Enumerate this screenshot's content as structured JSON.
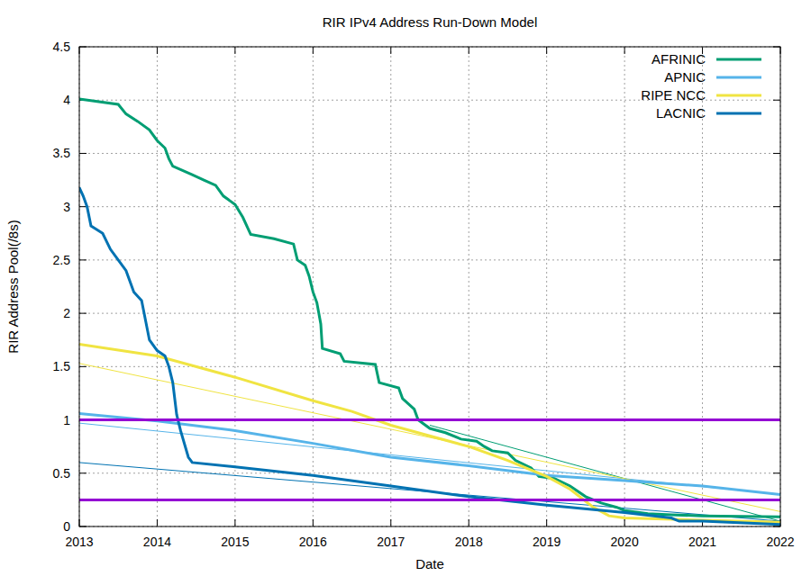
{
  "chart_data": {
    "type": "line",
    "title": "RIR IPv4 Address Run-Down Model",
    "x_label": "Date",
    "y_label": "RIR Address Pool(/8s)",
    "xlim": [
      2013,
      2022
    ],
    "xticks": [
      2013,
      2014,
      2015,
      2016,
      2017,
      2018,
      2019,
      2020,
      2021,
      2022
    ],
    "ylim": [
      0,
      4.5
    ],
    "yticks": [
      0,
      0.5,
      1,
      1.5,
      2,
      2.5,
      3,
      3.5,
      4,
      4.5
    ],
    "grid": true,
    "legend": "top-right",
    "reference_lines": [
      {
        "value": 1,
        "color": "#9400d3"
      },
      {
        "value": 0.25,
        "color": "#9400d3"
      }
    ],
    "series": [
      {
        "name": "AFRINIC",
        "color": "#009e73",
        "line_style": "solid",
        "x": [
          2013.0,
          2013.5,
          2013.6,
          2013.75,
          2013.9,
          2014.0,
          2014.1,
          2014.15,
          2014.2,
          2014.45,
          2014.6,
          2014.75,
          2014.85,
          2015.0,
          2015.1,
          2015.2,
          2015.5,
          2015.75,
          2015.8,
          2015.9,
          2015.95,
          2016.0,
          2016.05,
          2016.1,
          2016.12,
          2016.35,
          2016.4,
          2016.8,
          2016.85,
          2017.1,
          2017.15,
          2017.3,
          2017.35,
          2017.5,
          2017.7,
          2017.9,
          2018.1,
          2018.2,
          2018.3,
          2018.5,
          2018.6,
          2018.8,
          2018.9,
          2019.1,
          2019.3,
          2019.5,
          2019.7,
          2019.9,
          2020.0,
          2020.3,
          2020.6,
          2021.0,
          2022.0
        ],
        "values": [
          4.01,
          3.96,
          3.87,
          3.8,
          3.72,
          3.62,
          3.55,
          3.45,
          3.38,
          3.3,
          3.25,
          3.2,
          3.1,
          3.02,
          2.9,
          2.74,
          2.7,
          2.65,
          2.5,
          2.45,
          2.35,
          2.2,
          2.1,
          1.9,
          1.67,
          1.62,
          1.55,
          1.52,
          1.35,
          1.3,
          1.2,
          1.1,
          1.0,
          0.92,
          0.88,
          0.82,
          0.8,
          0.75,
          0.71,
          0.69,
          0.62,
          0.55,
          0.47,
          0.45,
          0.38,
          0.28,
          0.22,
          0.18,
          0.15,
          0.12,
          0.11,
          0.1,
          0.09
        ]
      },
      {
        "name": "APNIC",
        "color": "#56b4e9",
        "line_style": "solid",
        "x": [
          2013,
          2014,
          2015,
          2016,
          2017,
          2018,
          2019,
          2020,
          2021,
          2022
        ],
        "values": [
          1.06,
          0.99,
          0.9,
          0.78,
          0.65,
          0.57,
          0.48,
          0.43,
          0.38,
          0.3
        ]
      },
      {
        "name": "RIPE NCC",
        "color": "#f0e442",
        "line_style": "solid",
        "x": [
          2013,
          2014,
          2015,
          2016,
          2016.5,
          2017,
          2018,
          2018.5,
          2019,
          2019.3,
          2019.6,
          2019.8,
          2020,
          2021,
          2022
        ],
        "values": [
          1.71,
          1.6,
          1.4,
          1.18,
          1.08,
          0.95,
          0.75,
          0.62,
          0.47,
          0.35,
          0.18,
          0.1,
          0.08,
          0.06,
          0.04
        ]
      },
      {
        "name": "LACNIC",
        "color": "#0072b2",
        "line_style": "solid",
        "x": [
          2013.0,
          2013.05,
          2013.1,
          2013.15,
          2013.3,
          2013.4,
          2013.5,
          2013.6,
          2013.7,
          2013.8,
          2013.9,
          2014.0,
          2014.1,
          2014.15,
          2014.2,
          2014.25,
          2014.3,
          2014.4,
          2014.45,
          2015,
          2016,
          2017,
          2018,
          2019,
          2020,
          2020.6,
          2020.7,
          2021,
          2022
        ],
        "values": [
          3.18,
          3.1,
          3.0,
          2.82,
          2.75,
          2.6,
          2.5,
          2.4,
          2.2,
          2.12,
          1.75,
          1.65,
          1.6,
          1.5,
          1.35,
          1.05,
          0.9,
          0.65,
          0.6,
          0.56,
          0.48,
          0.38,
          0.28,
          0.2,
          0.13,
          0.08,
          0.05,
          0.05,
          0.02
        ]
      },
      {
        "color": "#009e73",
        "line_style": "thin",
        "x": [
          2017.5,
          2022
        ],
        "values": [
          0.95,
          0.05
        ]
      },
      {
        "color": "#56b4e9",
        "line_style": "thin",
        "x": [
          2013,
          2022
        ],
        "values": [
          0.97,
          0.3
        ]
      },
      {
        "color": "#f0e442",
        "line_style": "thin",
        "x": [
          2013,
          2022
        ],
        "values": [
          1.53,
          0.14
        ]
      },
      {
        "color": "#0072b2",
        "line_style": "thin",
        "x": [
          2013,
          2022
        ],
        "values": [
          0.6,
          0.05
        ]
      }
    ]
  }
}
